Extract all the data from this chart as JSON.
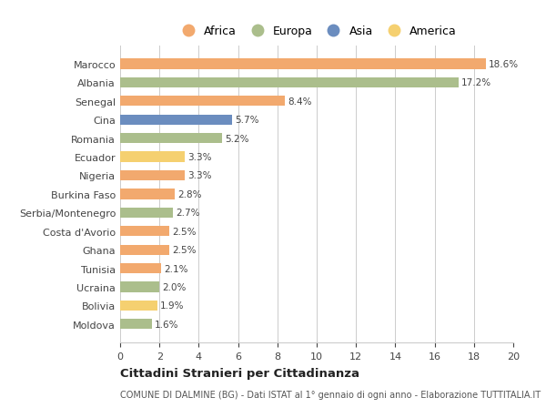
{
  "countries": [
    "Marocco",
    "Albania",
    "Senegal",
    "Cina",
    "Romania",
    "Ecuador",
    "Nigeria",
    "Burkina Faso",
    "Serbia/Montenegro",
    "Costa d'Avorio",
    "Ghana",
    "Tunisia",
    "Ucraina",
    "Bolivia",
    "Moldova"
  ],
  "values": [
    18.6,
    17.2,
    8.4,
    5.7,
    5.2,
    3.3,
    3.3,
    2.8,
    2.7,
    2.5,
    2.5,
    2.1,
    2.0,
    1.9,
    1.6
  ],
  "continents": [
    "Africa",
    "Europa",
    "Africa",
    "Asia",
    "Europa",
    "America",
    "Africa",
    "Africa",
    "Europa",
    "Africa",
    "Africa",
    "Africa",
    "Europa",
    "America",
    "Europa"
  ],
  "colors": {
    "Africa": "#F2A96E",
    "Europa": "#ABBE8C",
    "Asia": "#6B8DBF",
    "America": "#F5D070"
  },
  "legend_order": [
    "Africa",
    "Europa",
    "Asia",
    "America"
  ],
  "xlim": [
    0,
    20
  ],
  "xticks": [
    0,
    2,
    4,
    6,
    8,
    10,
    12,
    14,
    16,
    18,
    20
  ],
  "title": "Cittadini Stranieri per Cittadinanza",
  "subtitle": "COMUNE DI DALMINE (BG) - Dati ISTAT al 1° gennaio di ogni anno - Elaborazione TUTTITALIA.IT",
  "background_color": "#ffffff",
  "grid_color": "#cccccc",
  "bar_height": 0.55
}
